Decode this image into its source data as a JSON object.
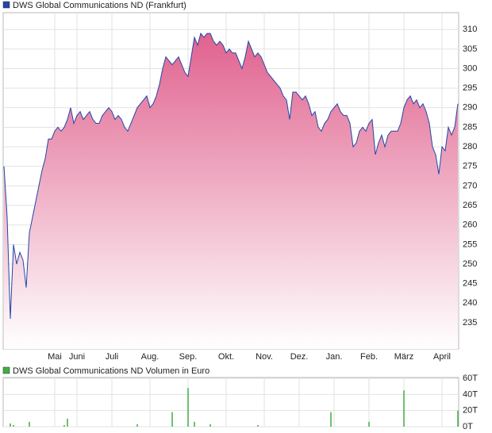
{
  "chart_data": [
    {
      "type": "area",
      "title": "DWS Global Communications ND (Frankfurt)",
      "color": "#2346a8",
      "fill_color": "#e0628e",
      "categories": [
        null,
        null,
        null,
        null,
        null,
        null,
        null,
        null,
        null,
        null,
        null,
        null,
        null,
        null,
        null,
        null,
        "Mai",
        null,
        null,
        null,
        null,
        null,
        null,
        "Juni",
        null,
        null,
        null,
        null,
        null,
        null,
        null,
        null,
        null,
        null,
        "Juli",
        null,
        null,
        null,
        null,
        null,
        null,
        null,
        null,
        null,
        null,
        null,
        "Aug.",
        null,
        null,
        null,
        null,
        null,
        null,
        null,
        null,
        null,
        null,
        null,
        "Sep.",
        null,
        null,
        null,
        null,
        null,
        null,
        null,
        null,
        null,
        null,
        null,
        "Okt.",
        null,
        null,
        null,
        null,
        null,
        null,
        null,
        null,
        null,
        null,
        null,
        "Nov.",
        null,
        null,
        null,
        null,
        null,
        null,
        null,
        null,
        null,
        null,
        "Dez.",
        null,
        null,
        null,
        null,
        null,
        null,
        null,
        null,
        null,
        null,
        "Jan.",
        null,
        null,
        null,
        null,
        null,
        null,
        null,
        null,
        null,
        null,
        "Feb.",
        null,
        null,
        null,
        null,
        null,
        null,
        null,
        null,
        null,
        null,
        "März",
        null,
        null,
        null,
        null,
        null,
        null,
        null,
        null,
        null,
        null,
        null,
        "April",
        null,
        null,
        null,
        null,
        null
      ],
      "values": [
        275,
        262,
        236,
        255,
        250,
        253,
        251,
        244,
        258,
        262,
        266,
        270,
        274,
        277,
        282,
        282,
        284,
        285,
        284,
        285,
        287,
        290,
        286,
        288,
        289,
        287,
        288,
        289,
        287,
        286,
        286,
        288,
        289,
        290,
        289,
        287,
        288,
        287,
        285,
        284,
        286,
        288,
        290,
        291,
        292,
        293,
        290,
        291,
        293,
        296,
        300,
        303,
        302,
        301,
        302,
        303,
        301,
        299,
        298,
        303,
        308,
        306,
        309,
        308,
        309,
        309,
        307,
        306,
        307,
        306,
        304,
        305,
        304,
        304,
        302,
        300,
        303,
        307,
        305,
        303,
        304,
        303,
        301,
        299,
        298,
        297,
        296,
        295,
        293,
        292,
        287,
        294,
        294,
        293,
        292,
        293,
        291,
        288,
        289,
        285,
        284,
        286,
        287,
        289,
        290,
        291,
        289,
        288,
        288,
        286,
        280,
        281,
        284,
        285,
        284,
        286,
        287,
        278,
        281,
        283,
        280,
        283,
        284,
        284,
        284,
        286,
        290,
        292,
        293,
        291,
        292,
        290,
        291,
        289,
        286,
        280,
        278,
        273,
        280,
        279,
        285,
        283,
        285,
        291
      ],
      "ylim": [
        228.3,
        314.3
      ],
      "yticks": [
        235,
        240,
        245,
        250,
        255,
        260,
        265,
        270,
        275,
        280,
        285,
        290,
        295,
        300,
        305,
        310
      ],
      "grid": true
    },
    {
      "type": "bar",
      "title": "DWS Global Communications ND Volumen in Euro",
      "color": "#3fae3f",
      "values": [
        0,
        0,
        4,
        2,
        0,
        0,
        0,
        0,
        6,
        0,
        0,
        0,
        0,
        0,
        0,
        0,
        0,
        0,
        0,
        2,
        10,
        0,
        0,
        0,
        0,
        0,
        0,
        0,
        0,
        0,
        0,
        0,
        0,
        0,
        0,
        0,
        0,
        0,
        0,
        0,
        0,
        0,
        3,
        0,
        0,
        0,
        0,
        0,
        0,
        0,
        0,
        0,
        0,
        18,
        0,
        0,
        0,
        0,
        48,
        0,
        6,
        0,
        0,
        0,
        0,
        3,
        0,
        0,
        0,
        0,
        0,
        0,
        0,
        0,
        0,
        0,
        0,
        0,
        0,
        0,
        2,
        0,
        0,
        0,
        0,
        0,
        0,
        0,
        0,
        0,
        0,
        0,
        0,
        0,
        0,
        0,
        0,
        0,
        0,
        0,
        0,
        0,
        0,
        18,
        0,
        0,
        0,
        0,
        0,
        0,
        0,
        0,
        0,
        0,
        0,
        6,
        0,
        0,
        0,
        0,
        0,
        0,
        0,
        0,
        0,
        0,
        45,
        0,
        0,
        0,
        0,
        0,
        0,
        0,
        0,
        0,
        0,
        0,
        0,
        0,
        0,
        0,
        0,
        20
      ],
      "ylim": [
        0,
        61
      ],
      "yticks": [
        {
          "value": 0,
          "label": "0T"
        },
        {
          "value": 20,
          "label": "20T"
        },
        {
          "value": 40,
          "label": "40T"
        },
        {
          "value": 60,
          "label": "60T"
        }
      ],
      "grid": true
    }
  ]
}
